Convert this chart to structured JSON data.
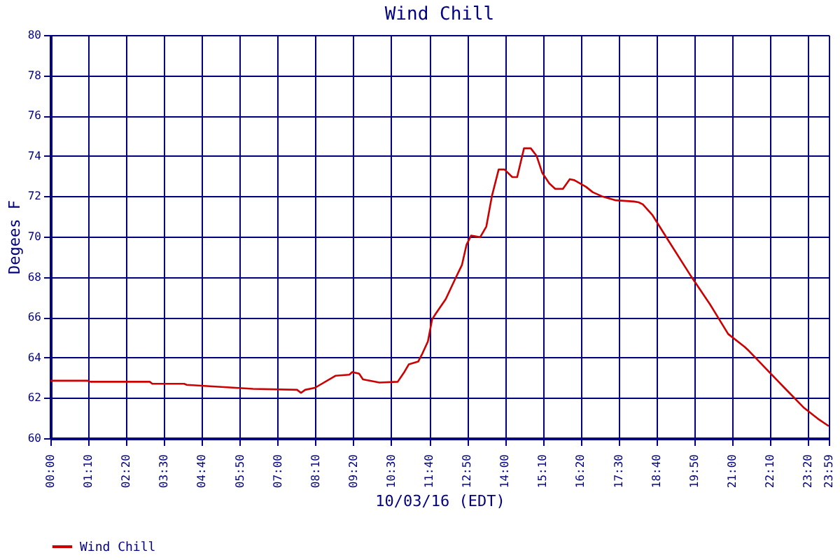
{
  "chart_data": {
    "type": "line",
    "title": "Wind Chill",
    "xlabel": "10/03/16 (EDT)",
    "ylabel": "Degees F",
    "x": [
      0,
      1.15,
      1.23,
      3.06,
      3.14,
      4.12,
      4.2,
      6.24,
      7.6,
      7.72,
      7.85,
      8.15,
      8.79,
      9.21,
      9.3,
      9.51,
      9.63,
      10.14,
      10.7,
      10.91,
      11.04,
      11.33,
      11.46,
      11.63,
      11.76,
      11.88,
      12.18,
      12.47,
      12.68,
      12.82,
      12.96,
      13.24,
      13.43,
      13.6,
      13.81,
      13.99,
      14.23,
      14.38,
      14.59,
      14.8,
      14.98,
      15.15,
      15.37,
      15.55,
      15.79,
      16.0,
      16.14,
      16.5,
      16.71,
      16.99,
      17.42,
      17.98,
      18.12,
      18.25,
      18.55,
      19.04,
      19.75,
      20.32,
      20.88,
      21.38,
      21.52,
      22.08,
      22.65,
      23.22,
      23.64,
      23.98
    ],
    "series": [
      {
        "name": "Wind Chill",
        "color": "#cc0000",
        "values": [
          62.85,
          62.85,
          62.8,
          62.8,
          62.7,
          62.7,
          62.65,
          62.45,
          62.4,
          62.25,
          62.4,
          62.5,
          63.1,
          63.15,
          63.28,
          63.2,
          62.92,
          62.76,
          62.8,
          63.3,
          63.66,
          63.8,
          64.2,
          64.8,
          65.9,
          66.2,
          66.9,
          67.9,
          68.6,
          69.6,
          70.05,
          69.97,
          70.5,
          72.0,
          73.33,
          73.33,
          72.95,
          72.95,
          74.38,
          74.38,
          74.0,
          73.17,
          72.64,
          72.37,
          72.37,
          72.85,
          72.8,
          72.47,
          72.2,
          72.0,
          71.8,
          71.74,
          71.7,
          71.6,
          71.06,
          69.8,
          68.0,
          66.64,
          65.17,
          64.54,
          64.33,
          63.39,
          62.44,
          61.5,
          60.97,
          60.6
        ]
      }
    ],
    "xlim": [
      0,
      23.98
    ],
    "xticks": [
      {
        "value": 0,
        "label": "00:00"
      },
      {
        "value": 1.1667,
        "label": "01:10"
      },
      {
        "value": 2.3333,
        "label": "02:20"
      },
      {
        "value": 3.5,
        "label": "03:30"
      },
      {
        "value": 4.6667,
        "label": "04:40"
      },
      {
        "value": 5.8333,
        "label": "05:50"
      },
      {
        "value": 7,
        "label": "07:00"
      },
      {
        "value": 8.1667,
        "label": "08:10"
      },
      {
        "value": 9.3333,
        "label": "09:20"
      },
      {
        "value": 10.5,
        "label": "10:30"
      },
      {
        "value": 11.6667,
        "label": "11:40"
      },
      {
        "value": 12.8333,
        "label": "12:50"
      },
      {
        "value": 14,
        "label": "14:00"
      },
      {
        "value": 15.1667,
        "label": "15:10"
      },
      {
        "value": 16.3333,
        "label": "16:20"
      },
      {
        "value": 17.5,
        "label": "17:30"
      },
      {
        "value": 18.6667,
        "label": "18:40"
      },
      {
        "value": 19.8333,
        "label": "19:50"
      },
      {
        "value": 21,
        "label": "21:00"
      },
      {
        "value": 22.1667,
        "label": "22:10"
      },
      {
        "value": 23.3333,
        "label": "23:20"
      },
      {
        "value": 23.98,
        "label": "23:59"
      }
    ],
    "ylim": [
      60,
      80
    ],
    "yticks": [
      60,
      62,
      64,
      66,
      68,
      70,
      72,
      74,
      76,
      78,
      80
    ],
    "grid": true,
    "legend": "bottom",
    "marker": "none",
    "line_style": "solid"
  }
}
